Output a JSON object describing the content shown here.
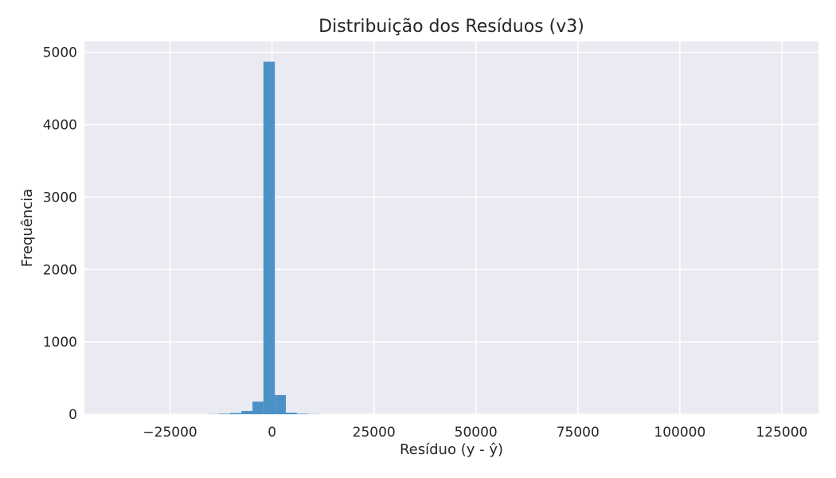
{
  "chart_data": {
    "type": "bar",
    "title": "Distribuição dos Resíduos (v3)",
    "xlabel": "Resíduo (y - ŷ)",
    "ylabel": "Frequência",
    "xlim": [
      -46000,
      134000
    ],
    "ylim": [
      0,
      5150
    ],
    "xticks": [
      -25000,
      0,
      25000,
      50000,
      75000,
      100000,
      125000
    ],
    "xtick_labels": [
      "−25000",
      "0",
      "25000",
      "50000",
      "75000",
      "100000",
      "125000"
    ],
    "yticks": [
      0,
      1000,
      2000,
      3000,
      4000,
      5000
    ],
    "ytick_labels": [
      "0",
      "1000",
      "2000",
      "3000",
      "4000",
      "5000"
    ],
    "grid": true,
    "bar_color": "#3a87c0",
    "plot_background": "#eaeaf2",
    "bins": [
      {
        "x0": -15700,
        "x1": -13000,
        "count": 3
      },
      {
        "x0": -13000,
        "x1": -10300,
        "count": 8
      },
      {
        "x0": -10300,
        "x1": -7500,
        "count": 18
      },
      {
        "x0": -7500,
        "x1": -4800,
        "count": 45
      },
      {
        "x0": -4800,
        "x1": -2100,
        "count": 175
      },
      {
        "x0": -2100,
        "x1": 700,
        "count": 4870
      },
      {
        "x0": 700,
        "x1": 3400,
        "count": 265
      },
      {
        "x0": 3400,
        "x1": 6100,
        "count": 22
      },
      {
        "x0": 6100,
        "x1": 8900,
        "count": 8
      },
      {
        "x0": 8900,
        "x1": 11600,
        "count": 3
      }
    ]
  }
}
